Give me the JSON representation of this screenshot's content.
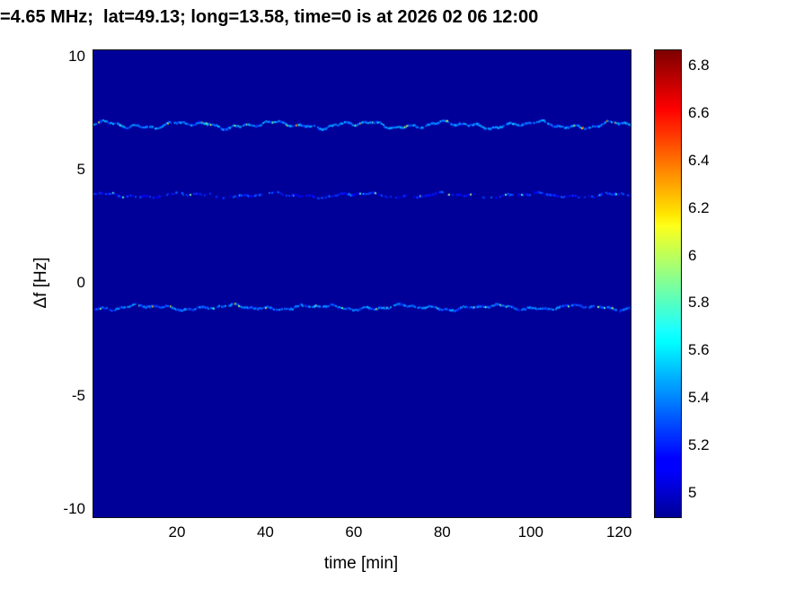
{
  "chart_data": {
    "type": "heatmap",
    "title": "=4.65 MHz;  lat=49.13; long=13.58, time=0 is at 2026 02 06 12:00",
    "xlabel": "time [min]",
    "ylabel": "Δf [Hz]",
    "xlim": [
      0.9,
      122.4
    ],
    "ylim": [
      -10.3,
      10.3
    ],
    "xticks": [
      20,
      40,
      60,
      80,
      100,
      120
    ],
    "yticks": [
      10,
      5,
      0,
      -5,
      -10
    ],
    "colorbar": {
      "ticks": [
        6.8,
        6.6,
        6.4,
        6.2,
        6,
        5.8,
        5.6,
        5.4,
        5.2,
        5
      ],
      "clim": [
        4.9,
        6.87
      ],
      "colormap": "jet"
    },
    "background_value": 4.9,
    "traces": [
      {
        "name": "trace-upper",
        "center_hz": 7.0,
        "wiggle_hz": 0.18,
        "intensity_base": 5.25,
        "intensity_peak": 6.4,
        "gap_fraction": 0.18
      },
      {
        "name": "trace-middle",
        "center_hz": 3.9,
        "wiggle_hz": 0.12,
        "intensity_base": 5.05,
        "intensity_peak": 5.9,
        "gap_fraction": 0.48
      },
      {
        "name": "trace-lower",
        "center_hz": -1.05,
        "wiggle_hz": 0.13,
        "intensity_base": 5.2,
        "intensity_peak": 6.2,
        "gap_fraction": 0.25
      }
    ]
  }
}
